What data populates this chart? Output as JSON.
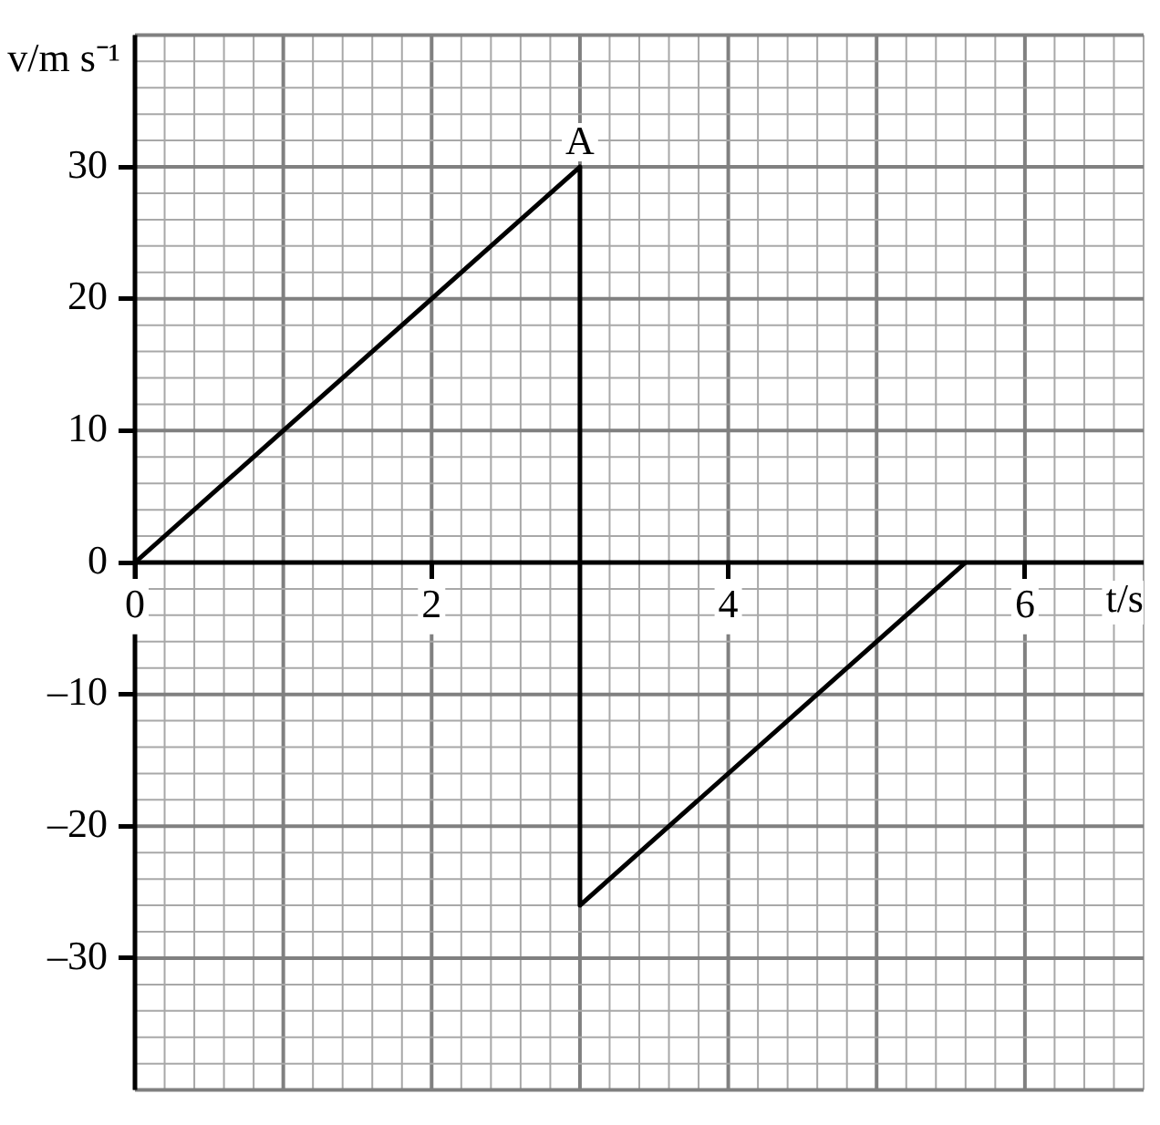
{
  "chart_data": {
    "type": "line",
    "xlabel": "t/s",
    "ylabel": "v/m s⁻¹",
    "x": [
      0,
      3,
      3,
      5.6
    ],
    "series": [
      {
        "color": "#000000",
        "values": [
          0,
          30,
          -26,
          0
        ]
      }
    ],
    "xlim": [
      0,
      6.8
    ],
    "ylim": [
      -40,
      40
    ],
    "xticks": [
      0,
      2,
      4,
      6
    ],
    "yticks": [
      {
        "value": -30,
        "label": "–30"
      },
      {
        "value": -20,
        "label": "–20"
      },
      {
        "value": -10,
        "label": "–10"
      },
      0,
      10,
      20,
      30
    ],
    "grid": true,
    "marker": "none",
    "line_style": "solid",
    "legend": false,
    "annotations": [
      {
        "text": "A",
        "x": 3,
        "y": 30
      }
    ]
  }
}
